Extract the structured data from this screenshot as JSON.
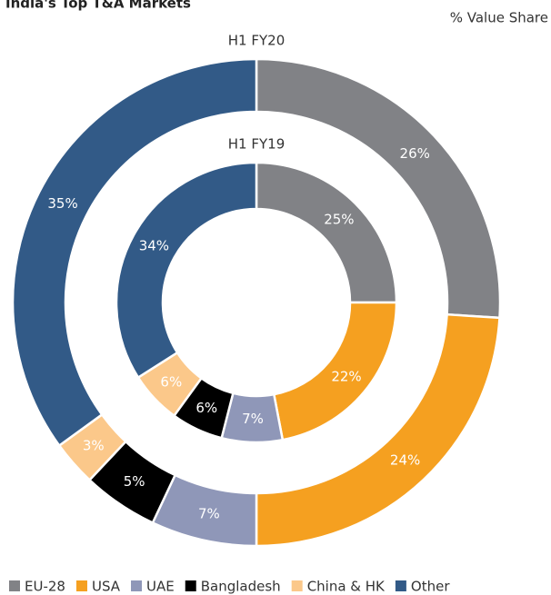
{
  "chart_data": {
    "type": "donut",
    "title": "India's Top T&A Markets",
    "subtitle": "% Value Share",
    "categories": [
      "EU-28",
      "USA",
      "UAE",
      "Bangladesh",
      "China & HK",
      "Other"
    ],
    "colors": [
      "#818286",
      "#f5a020",
      "#8f97b8",
      "#000000",
      "#fbc88a",
      "#325a87"
    ],
    "series": [
      {
        "name": "H1 FY20",
        "values": [
          26,
          24,
          7,
          5,
          3,
          35
        ],
        "value_labels": [
          "26%",
          "24%",
          "7%",
          "5%",
          "3%",
          "35%"
        ]
      },
      {
        "name": "H1 FY19",
        "values": [
          25,
          22,
          7,
          6,
          6,
          34
        ],
        "value_labels": [
          "25%",
          "22%",
          "7%",
          "6%",
          "6%",
          "34%"
        ]
      }
    ]
  }
}
